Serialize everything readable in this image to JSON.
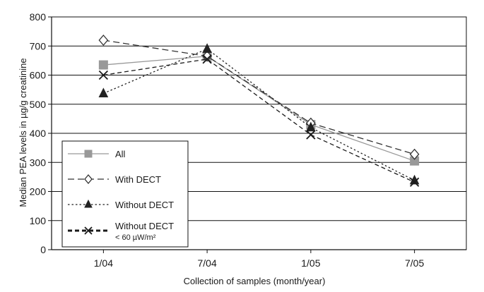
{
  "chart_data": {
    "type": "line",
    "title": "",
    "xlabel": "Collection of samples (month/year)",
    "ylabel": "Median PEA levels in µg/g creatinine",
    "categories": [
      "1/04",
      "7/04",
      "1/05",
      "7/05"
    ],
    "ylim": [
      0,
      800
    ],
    "yticks": [
      0,
      100,
      200,
      300,
      400,
      500,
      600,
      700,
      800
    ],
    "grid": "horizontal",
    "legend_position": "bottom-left",
    "series": [
      {
        "name": "All",
        "values": [
          635,
          665,
          430,
          305
        ],
        "color": "#999999",
        "dash": "solid",
        "marker": "square"
      },
      {
        "name": "With DECT",
        "values": [
          720,
          665,
          435,
          328
        ],
        "color": "#333333",
        "dash": "long-dash",
        "marker": "diamond"
      },
      {
        "name": "Without DECT",
        "values": [
          537,
          690,
          420,
          238
        ],
        "color": "#222222",
        "dash": "dotted",
        "marker": "triangle"
      },
      {
        "name": "Without DECT\n< 60 µW/m²",
        "values": [
          600,
          655,
          395,
          232
        ],
        "color": "#1a1a1a",
        "dash": "short-dash",
        "marker": "x"
      }
    ]
  }
}
